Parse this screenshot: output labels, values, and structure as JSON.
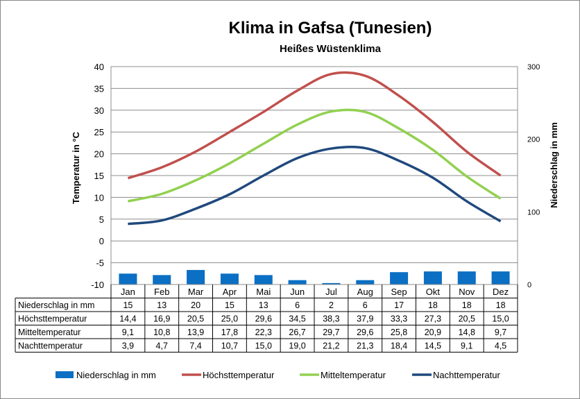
{
  "chart_data": {
    "type": "line",
    "title": "Klima in Gafsa (Tunesien)",
    "subtitle": "Heißes Wüstenklima",
    "ylabel": "Temperatur in °C",
    "y2label": "Niederschlag in mm",
    "ylim": [
      -10,
      40
    ],
    "yticks": [
      "40",
      "35",
      "30",
      "25",
      "20",
      "15",
      "10",
      "5",
      "0",
      "-5",
      "-10"
    ],
    "y2lim": [
      0,
      300
    ],
    "y2ticks": [
      "300",
      "200",
      "100",
      "0"
    ],
    "categories": [
      "Jan",
      "Feb",
      "Mar",
      "Apr",
      "Mai",
      "Jun",
      "Jul",
      "Aug",
      "Sep",
      "Okt",
      "Nov",
      "Dez"
    ],
    "series": [
      {
        "name": "Niederschlag in mm",
        "type": "bar",
        "axis": "right",
        "color": "#0b6fc4",
        "values": [
          15,
          13,
          20,
          15,
          13,
          6,
          2,
          6,
          17,
          18,
          18,
          18
        ],
        "labels": [
          "15",
          "13",
          "20",
          "15",
          "13",
          "6",
          "2",
          "6",
          "17",
          "18",
          "18",
          "18"
        ]
      },
      {
        "name": "Höchsttemperatur",
        "type": "line",
        "axis": "left",
        "color": "#c0504d",
        "values": [
          14.4,
          16.9,
          20.5,
          25.0,
          29.6,
          34.5,
          38.3,
          37.9,
          33.3,
          27.3,
          20.5,
          15.0
        ],
        "labels": [
          "14,4",
          "16,9",
          "20,5",
          "25,0",
          "29,6",
          "34,5",
          "38,3",
          "37,9",
          "33,3",
          "27,3",
          "20,5",
          "15,0"
        ]
      },
      {
        "name": "Mitteltemperatur",
        "type": "line",
        "axis": "left",
        "color": "#92d050",
        "values": [
          9.1,
          10.8,
          13.9,
          17.8,
          22.3,
          26.7,
          29.7,
          29.6,
          25.8,
          20.9,
          14.8,
          9.7
        ],
        "labels": [
          "9,1",
          "10,8",
          "13,9",
          "17,8",
          "22,3",
          "26,7",
          "29,7",
          "29,6",
          "25,8",
          "20,9",
          "14,8",
          "9,7"
        ]
      },
      {
        "name": "Nachttemperatur",
        "type": "line",
        "axis": "left",
        "color": "#1f497d",
        "values": [
          3.9,
          4.7,
          7.4,
          10.7,
          15.0,
          19.0,
          21.2,
          21.3,
          18.4,
          14.5,
          9.1,
          4.5
        ],
        "labels": [
          "3,9",
          "4,7",
          "7,4",
          "10,7",
          "15,0",
          "19,0",
          "21,2",
          "21,3",
          "18,4",
          "14,5",
          "9,1",
          "4,5"
        ]
      }
    ],
    "grid": true,
    "legend": "bottom",
    "data_table": true
  }
}
